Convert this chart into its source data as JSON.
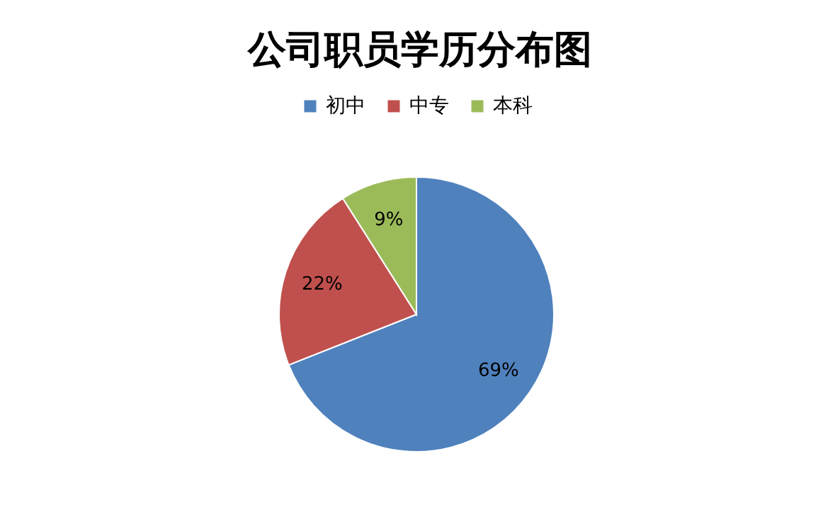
{
  "chart_data": {
    "type": "pie",
    "title": "公司职员学历分布图",
    "categories": [
      "初中",
      "中专",
      "本科"
    ],
    "values": [
      69,
      22,
      9
    ],
    "colors": [
      "#4f81bd",
      "#c0504d",
      "#9bbb59"
    ],
    "value_labels": [
      "69%",
      "22%",
      "9%"
    ],
    "legend": "top"
  }
}
